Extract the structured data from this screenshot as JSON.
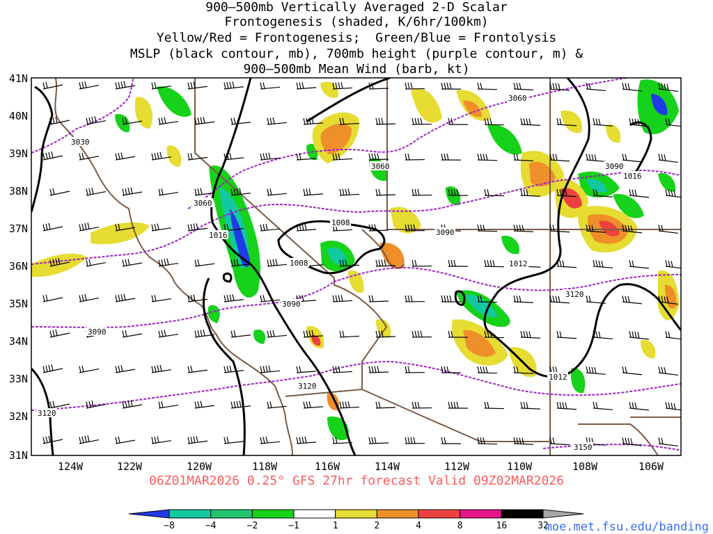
{
  "title_lines": [
    "900–500mb Vertically Averaged 2-D Scalar",
    "Frontogenesis (shaded, K/6hr/100km)",
    "Yellow/Red = Frontogenesis;  Green/Blue = Frontolysis",
    "MSLP (black contour, mb), 700mb height (purple contour, m) &",
    "900–500mb Mean Wind (barb, kt)"
  ],
  "subtitle": "06Z01MAR2026 0.25° GFS 27hr forecast Valid 09Z02MAR2026",
  "credit": "moe.met.fsu.edu/banding",
  "map": {
    "lon_labels": [
      "124W",
      "122W",
      "120W",
      "118W",
      "116W",
      "114W",
      "112W",
      "110W",
      "108W",
      "106W"
    ],
    "lat_labels": [
      "41N",
      "40N",
      "39N",
      "38N",
      "37N",
      "36N",
      "35N",
      "34N",
      "33N",
      "32N",
      "31N"
    ],
    "mslp_labels": [
      "1016",
      "1008",
      "1008",
      "1012",
      "1012",
      "1016"
    ],
    "height_labels": [
      "3030",
      "3060",
      "3060",
      "3060",
      "3090",
      "3090",
      "3090",
      "3090",
      "3120",
      "3120",
      "3120",
      "3150"
    ]
  },
  "colorbar": {
    "tick_labels": [
      "−8",
      "−4",
      "−2",
      "−1",
      "1",
      "2",
      "4",
      "8",
      "16",
      "32"
    ],
    "colors": [
      "#1f3be8",
      "#12c8a0",
      "#22c470",
      "#16d21a",
      "#ffffff",
      "#e6dc32",
      "#ef8f2a",
      "#ef4040",
      "#e8148c",
      "#000000",
      "#a8a8a8"
    ]
  },
  "colors": {
    "mslp": "#000000",
    "height": "#a020c8",
    "boundaries": "#7a5a44",
    "barbs": "#000000"
  }
}
